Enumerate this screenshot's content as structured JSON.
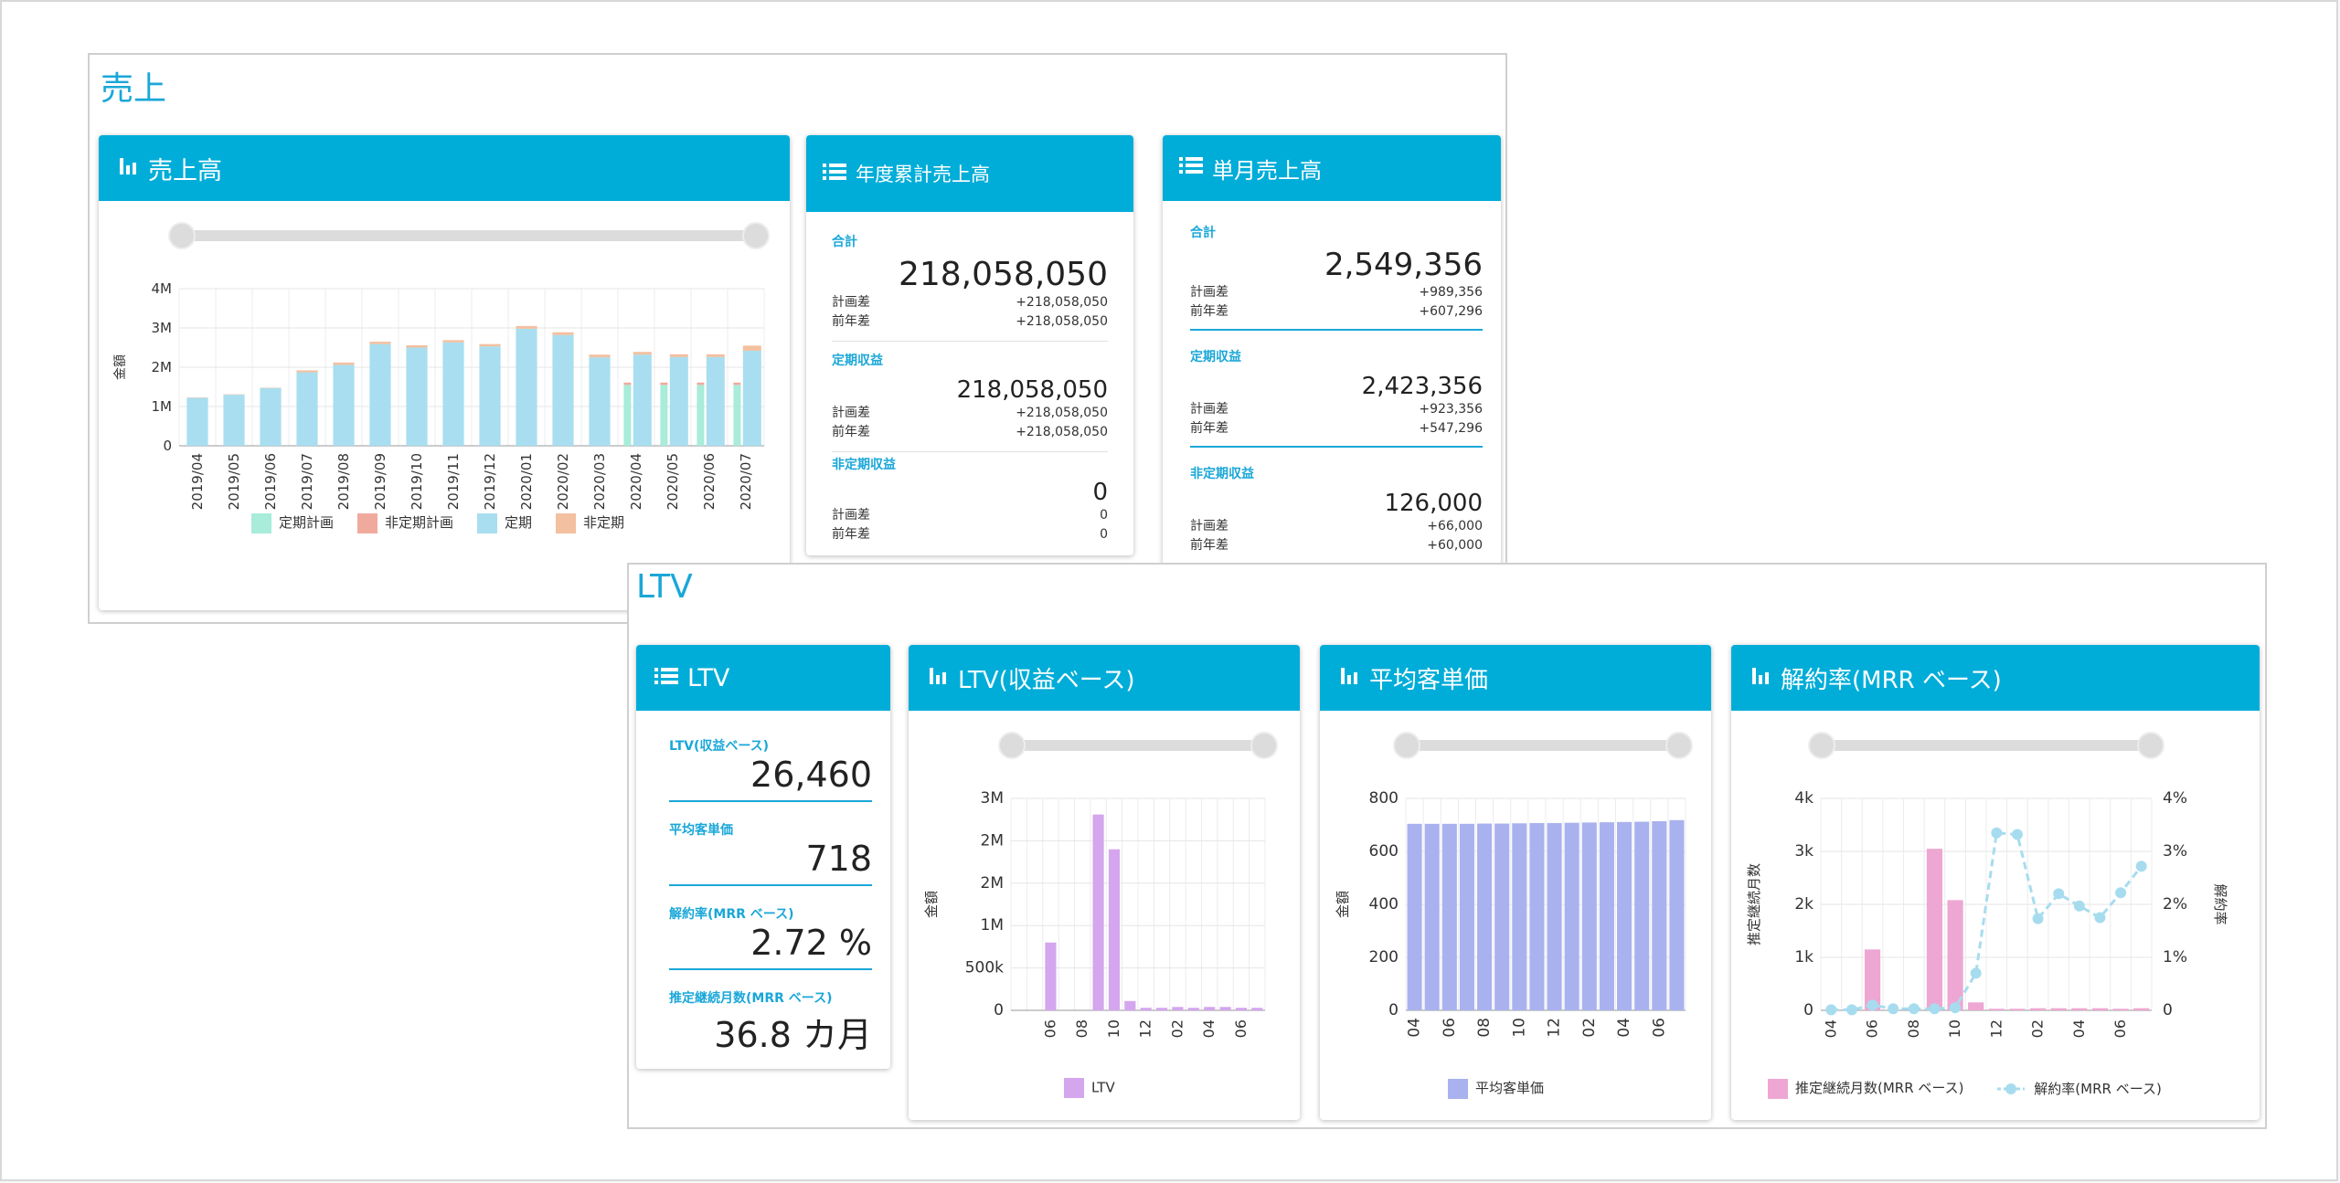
{
  "sales": {
    "section_title": "売上",
    "revenue_card": {
      "title": "売上高",
      "ylabel": "金額",
      "legend": [
        "定期計画",
        "非定期計画",
        "定期",
        "非定期"
      ]
    },
    "ytd_card": {
      "title": "年度累計売上高",
      "total_label": "合計",
      "total_value": "218,058,050",
      "total_plan_label": "計画差",
      "total_plan_value": "+218,058,050",
      "total_prev_label": "前年差",
      "total_prev_value": "+218,058,050",
      "recurring_label": "定期収益",
      "recurring_value": "218,058,050",
      "recurring_plan_label": "計画差",
      "recurring_plan_value": "+218,058,050",
      "recurring_prev_label": "前年差",
      "recurring_prev_value": "+218,058,050",
      "nonrecurring_label": "非定期収益",
      "nonrecurring_value": "0",
      "nonrecurring_plan_label": "計画差",
      "nonrecurring_plan_value": "0",
      "nonrecurring_prev_label": "前年差",
      "nonrecurring_prev_value": "0"
    },
    "month_card": {
      "title": "単月売上高",
      "total_label": "合計",
      "total_value": "2,549,356",
      "total_plan_label": "計画差",
      "total_plan_value": "+989,356",
      "total_prev_label": "前年差",
      "total_prev_value": "+607,296",
      "recurring_label": "定期収益",
      "recurring_value": "2,423,356",
      "recurring_plan_label": "計画差",
      "recurring_plan_value": "+923,356",
      "recurring_prev_label": "前年差",
      "recurring_prev_value": "+547,296",
      "nonrecurring_label": "非定期収益",
      "nonrecurring_value": "126,000",
      "nonrecurring_plan_label": "計画差",
      "nonrecurring_plan_value": "+66,000",
      "nonrecurring_prev_label": "前年差",
      "nonrecurring_prev_value": "+60,000"
    }
  },
  "ltv": {
    "section_title": "LTV",
    "summary_card": {
      "title": "LTV",
      "ltv_label": "LTV(収益ベース)",
      "ltv_value": "26,460",
      "unit_price_label": "平均客単価",
      "unit_price_value": "718",
      "churn_label": "解約率(MRR ベース)",
      "churn_value": "2.72 %",
      "months_label": "推定継続月数(MRR ベース)",
      "months_value": "36.8 カ月"
    },
    "ltv_chart_card": {
      "title": "LTV(収益ベース)",
      "ylabel": "金額",
      "legend": "LTV"
    },
    "price_chart_card": {
      "title": "平均客単価",
      "ylabel": "金額",
      "legend": "平均客単価"
    },
    "churn_chart_card": {
      "title": "解約率(MRR ベース)",
      "ylabel_left": "推定継続月数",
      "ylabel_right": "解約率",
      "legend_bar": "推定継続月数(MRR ベース)",
      "legend_line": "解約率(MRR ベース)"
    }
  },
  "colors": {
    "header": "#00add8",
    "plan_recurring": "#a8ecd9",
    "plan_nonrecurring": "#f0aa9d",
    "recurring": "#a8def0",
    "nonrecurring": "#f3c0a0",
    "ltv": "#d4a6ee",
    "unit_price": "#a9b2ee",
    "months": "#eea7d2",
    "churn": "#a7dcef"
  },
  "chart_data": [
    {
      "type": "bar",
      "title": "売上高",
      "ylabel": "金額",
      "ylim": [
        0,
        4000000
      ],
      "yticks": [
        "0",
        "1M",
        "2M",
        "3M",
        "4M"
      ],
      "categories": [
        "2019/04",
        "2019/05",
        "2019/06",
        "2019/07",
        "2019/08",
        "2019/09",
        "2019/10",
        "2019/11",
        "2019/12",
        "2020/01",
        "2020/02",
        "2020/03",
        "2020/04",
        "2020/05",
        "2020/06",
        "2020/07"
      ],
      "series": [
        {
          "name": "定期計画",
          "values": [
            null,
            null,
            null,
            null,
            null,
            null,
            null,
            null,
            null,
            null,
            null,
            null,
            1550000,
            1550000,
            1550000,
            1550000
          ]
        },
        {
          "name": "非定期計画",
          "values": [
            null,
            null,
            null,
            null,
            null,
            null,
            null,
            null,
            null,
            null,
            null,
            null,
            60000,
            60000,
            60000,
            60000
          ]
        },
        {
          "name": "定期",
          "values": [
            1220000,
            1300000,
            1470000,
            1870000,
            2060000,
            2590000,
            2500000,
            2630000,
            2530000,
            2980000,
            2820000,
            2250000,
            2320000,
            2260000,
            2260000,
            2420000
          ]
        },
        {
          "name": "非定期",
          "values": [
            10000,
            10000,
            10000,
            50000,
            60000,
            60000,
            60000,
            60000,
            60000,
            70000,
            70000,
            70000,
            70000,
            70000,
            70000,
            130000
          ]
        }
      ]
    },
    {
      "type": "bar",
      "title": "LTV(収益ベース)",
      "ylabel": "金額",
      "ylim": [
        0,
        3000000
      ],
      "yticks": [
        "0",
        "500k",
        "1M",
        "2M",
        "2M",
        "3M"
      ],
      "categories": [
        "2019/04",
        "2019/05",
        "2019/06",
        "2019/07",
        "2019/08",
        "2019/09",
        "2019/10",
        "2019/11",
        "2019/12",
        "2020/01",
        "2020/02",
        "2020/03",
        "2020/04",
        "2020/05",
        "2020/06",
        "2020/07"
      ],
      "xtick_labels": [
        "2019/06",
        "2019/08",
        "2019/10",
        "2019/12",
        "2020/02",
        "2020/04",
        "2020/06"
      ],
      "series": [
        {
          "name": "LTV",
          "values": [
            0,
            0,
            800000,
            0,
            0,
            2310000,
            1900000,
            110000,
            30000,
            30000,
            40000,
            30000,
            40000,
            40000,
            30000,
            30000
          ]
        }
      ]
    },
    {
      "type": "bar",
      "title": "平均客単価",
      "ylabel": "金額",
      "ylim": [
        0,
        800
      ],
      "yticks": [
        "0",
        "200",
        "400",
        "600",
        "800"
      ],
      "categories": [
        "2019/04",
        "2019/05",
        "2019/06",
        "2019/07",
        "2019/08",
        "2019/09",
        "2019/10",
        "2019/11",
        "2019/12",
        "2020/01",
        "2020/02",
        "2020/03",
        "2020/04",
        "2020/05",
        "2020/06",
        "2020/07"
      ],
      "xtick_labels": [
        "2019/04",
        "2019/06",
        "2019/08",
        "2019/10",
        "2019/12",
        "2020/02",
        "2020/04",
        "2020/06"
      ],
      "series": [
        {
          "name": "平均客単価",
          "values": [
            704,
            704,
            704,
            704,
            705,
            705,
            706,
            707,
            707,
            708,
            709,
            710,
            711,
            712,
            714,
            718
          ]
        }
      ]
    },
    {
      "type": "bar+line",
      "title": "解約率(MRR ベース)",
      "ylabel_left": "推定継続月数",
      "ylabel_right": "解約率",
      "ylim_left": [
        0,
        4000
      ],
      "ylim_right": [
        0,
        4
      ],
      "yticks_left": [
        "0",
        "1k",
        "2k",
        "3k",
        "4k"
      ],
      "yticks_right": [
        "0",
        "1%",
        "2%",
        "3%",
        "4%"
      ],
      "categories": [
        "2019/04",
        "2019/05",
        "2019/06",
        "2019/07",
        "2019/08",
        "2019/09",
        "2019/10",
        "2019/11",
        "2019/12",
        "2020/01",
        "2020/02",
        "2020/03",
        "2020/04",
        "2020/05",
        "2020/06",
        "2020/07"
      ],
      "xtick_labels": [
        "2019/04",
        "2019/06",
        "2019/08",
        "2019/10",
        "2019/12",
        "2020/02",
        "2020/04",
        "2020/06"
      ],
      "series": [
        {
          "name": "推定継続月数(MRR ベース)",
          "axis": "left",
          "values": [
            0,
            0,
            1150,
            0,
            0,
            3050,
            2080,
            150,
            30,
            30,
            40,
            40,
            40,
            40,
            30,
            40
          ]
        },
        {
          "name": "解約率(MRR ベース)",
          "axis": "right",
          "values": [
            0.01,
            0.01,
            0.1,
            0.03,
            0.03,
            0.03,
            0.05,
            0.7,
            3.35,
            3.32,
            1.73,
            2.2,
            1.97,
            1.75,
            2.22,
            2.72
          ]
        }
      ]
    }
  ]
}
